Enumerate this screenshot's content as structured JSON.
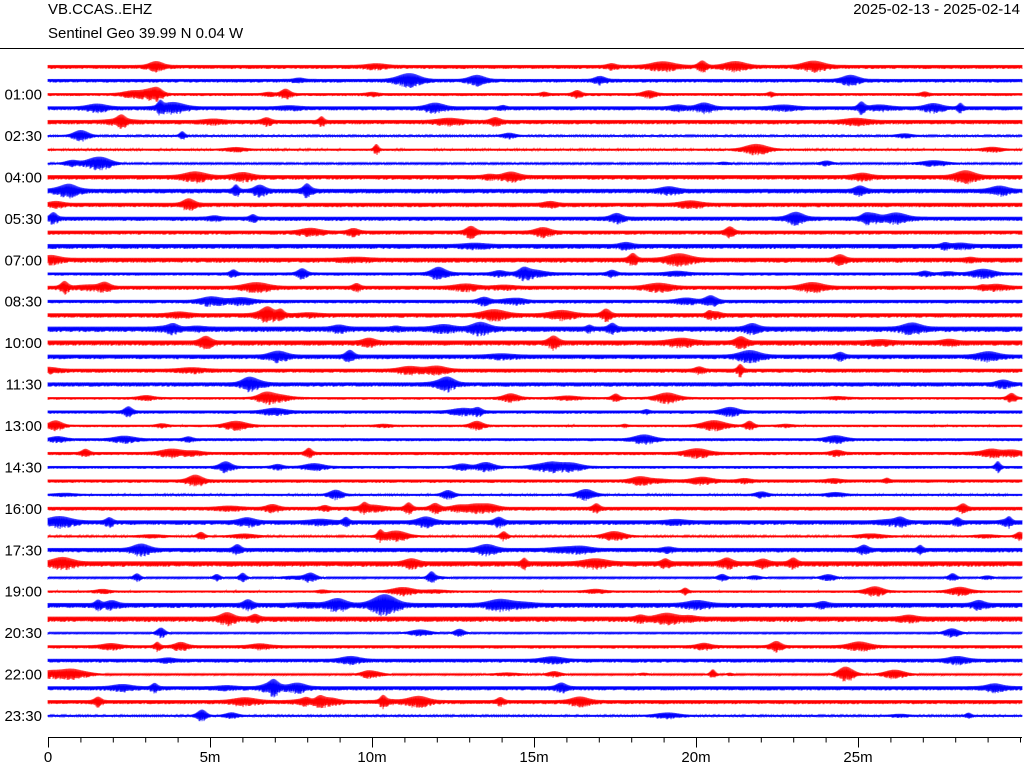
{
  "chart_data": {
    "type": "helicorder",
    "title": "VB.CCAS..EHZ",
    "subtitle": "Sentinel Geo  39.99 N 0.04 W",
    "date_range": "2025-02-13 - 2025-02-14",
    "trace_colors": [
      "#ff0000",
      "#0000ff"
    ],
    "xlim": [
      0,
      30
    ],
    "xticks": [
      0,
      {
        "value": 5,
        "label": "5m"
      },
      {
        "value": 10,
        "label": "10m"
      },
      {
        "value": 15,
        "label": "15m"
      },
      {
        "value": 20,
        "label": "20m"
      },
      {
        "value": 25,
        "label": "25m"
      }
    ],
    "ylim": [
      0,
      23.5
    ],
    "yticks": [
      {
        "value": 1,
        "label": "01:00"
      },
      {
        "value": 2.5,
        "label": "02:30"
      },
      {
        "value": 4,
        "label": "04:00"
      },
      {
        "value": 5.5,
        "label": "05:30"
      },
      {
        "value": 7,
        "label": "07:00"
      },
      {
        "value": 8.5,
        "label": "08:30"
      },
      {
        "value": 10,
        "label": "10:00"
      },
      {
        "value": 11.5,
        "label": "11:30"
      },
      {
        "value": 13,
        "label": "13:00"
      },
      {
        "value": 14.5,
        "label": "14:30"
      },
      {
        "value": 16,
        "label": "16:00"
      },
      {
        "value": 17.5,
        "label": "17:30"
      },
      {
        "value": 19,
        "label": "19:00"
      },
      {
        "value": 20.5,
        "label": "20:30"
      },
      {
        "value": 22,
        "label": "22:00"
      },
      {
        "value": 23.5,
        "label": "23:30"
      }
    ]
  }
}
